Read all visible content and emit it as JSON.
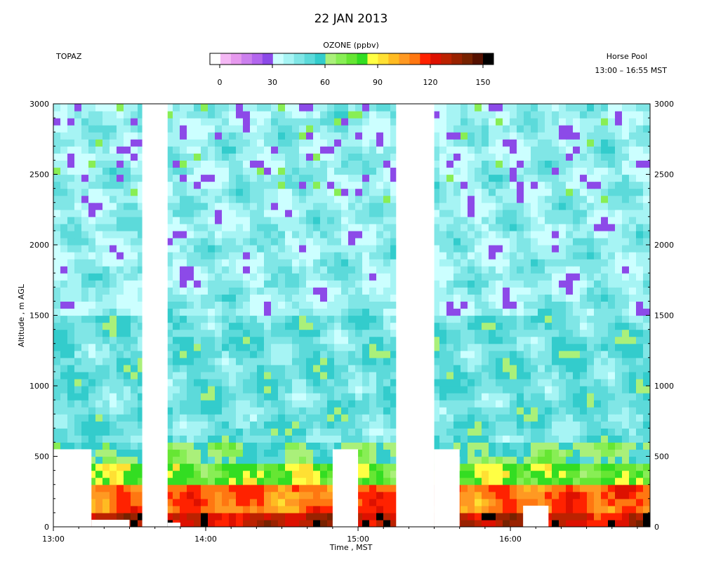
{
  "header": {
    "title": "22 JAN 2013",
    "instrument": "TOPAZ",
    "site": "Horse Pool",
    "time_range": "13:00 – 16:55 MST"
  },
  "colorbar": {
    "label": "OZONE (ppbv)",
    "ticks": [
      "0",
      "30",
      "60",
      "90",
      "120",
      "150"
    ],
    "colors": [
      "#ffffff",
      "#f4b8f4",
      "#e699ee",
      "#cc80ee",
      "#b366ee",
      "#8c4ae8",
      "#ccffff",
      "#a6f4f4",
      "#80e6e6",
      "#5cdada",
      "#33cccc",
      "#aaf07a",
      "#88ee55",
      "#66e633",
      "#33dd22",
      "#ffff44",
      "#ffe033",
      "#ffbb22",
      "#ff9922",
      "#ff7711",
      "#ff2200",
      "#dd1100",
      "#bb2200",
      "#992200",
      "#772200",
      "#551100",
      "#000000"
    ]
  },
  "chart_data": {
    "type": "heatmap",
    "title": "22 JAN 2013",
    "xlabel": "Time , MST",
    "ylabel": "Altitude , m AGL",
    "xlim": [
      "13:00",
      "16:55"
    ],
    "ylim": [
      0,
      3000
    ],
    "x_ticks": [
      "13:00",
      "14:00",
      "15:00",
      "16:00"
    ],
    "y_ticks": [
      "0",
      "500",
      "1000",
      "1500",
      "2000",
      "2500",
      "3000"
    ],
    "colorbar_label": "OZONE (ppbv)",
    "colorbar_range": [
      0,
      150
    ],
    "ozone_levels": [
      {
        "altitude_range": [
          0,
          100
        ],
        "ozone_ppbv": 125
      },
      {
        "altitude_range": [
          100,
          300
        ],
        "ozone_ppbv": 110
      },
      {
        "altitude_range": [
          300,
          450
        ],
        "ozone_ppbv": 80
      },
      {
        "altitude_range": [
          450,
          600
        ],
        "ozone_ppbv": 62
      },
      {
        "altitude_range": [
          600,
          1500
        ],
        "ozone_ppbv": 50
      },
      {
        "altitude_range": [
          1500,
          3000
        ],
        "ozone_ppbv": 42
      }
    ],
    "data_gaps": [
      {
        "time": [
          "13:00",
          "13:15"
        ],
        "altitude": [
          0,
          550
        ]
      },
      {
        "time": [
          "13:15",
          "13:30"
        ],
        "altitude": [
          0,
          50
        ]
      },
      {
        "time": [
          "13:35",
          "13:45"
        ],
        "altitude": [
          0,
          3000
        ]
      },
      {
        "time": [
          "13:45",
          "13:50"
        ],
        "altitude": [
          0,
          30
        ]
      },
      {
        "time": [
          "14:50",
          "15:00"
        ],
        "altitude": [
          0,
          550
        ]
      },
      {
        "time": [
          "15:15",
          "15:30"
        ],
        "altitude": [
          0,
          3000
        ]
      },
      {
        "time": [
          "15:30",
          "15:40"
        ],
        "altitude": [
          0,
          550
        ]
      },
      {
        "time": [
          "16:05",
          "16:15"
        ],
        "altitude": [
          0,
          150
        ]
      }
    ]
  }
}
